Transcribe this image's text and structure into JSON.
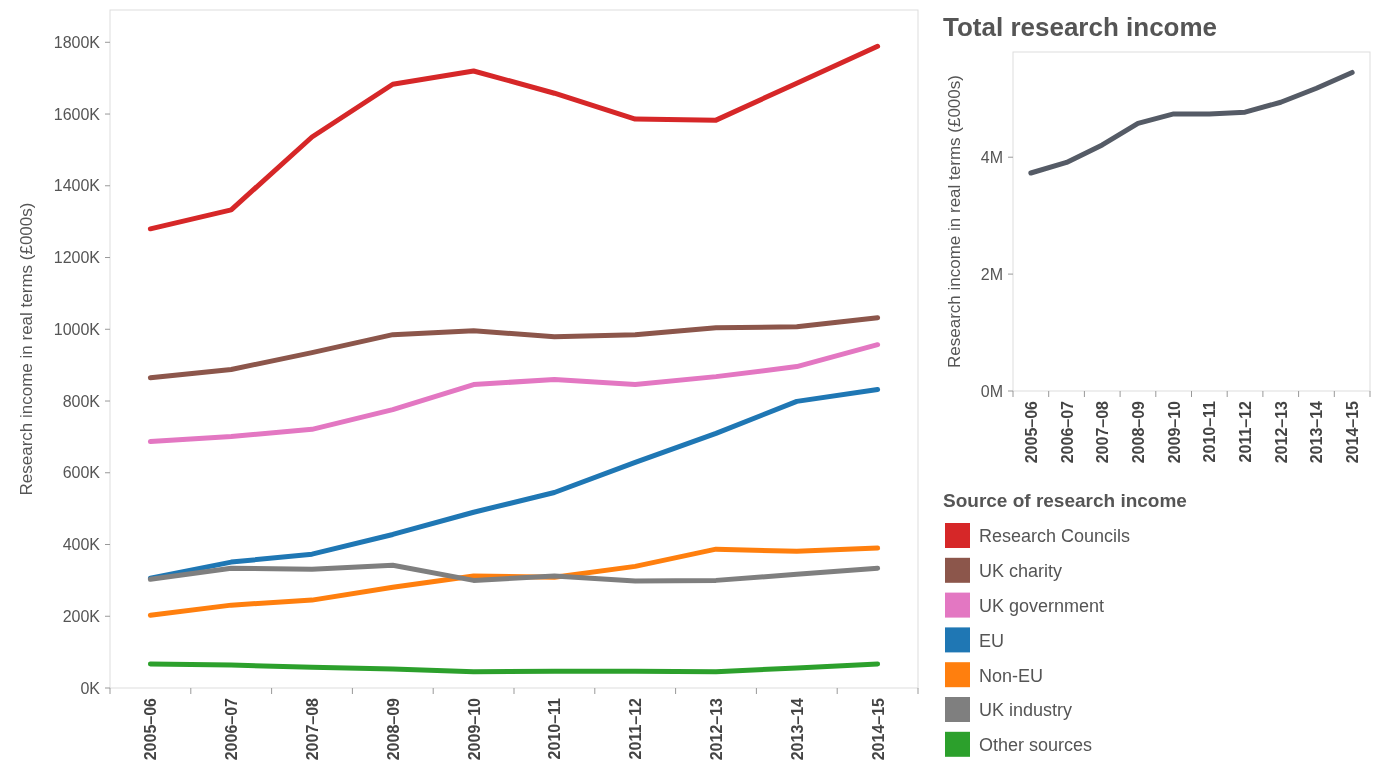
{
  "chart_data": [
    {
      "type": "line",
      "ylabel": "Research income in real terms (£000s)",
      "legend_title": "Source of research income",
      "legend": "right",
      "categories": [
        "2005–06",
        "2006–07",
        "2007–08",
        "2008–09",
        "2009–10",
        "2010–11",
        "2011–12",
        "2012–13",
        "2013–14",
        "2014–15"
      ],
      "ylim": [
        0,
        1890
      ],
      "yticks": [
        {
          "value": 0,
          "label": "0K"
        },
        {
          "value": 200,
          "label": "200K"
        },
        {
          "value": 400,
          "label": "400K"
        },
        {
          "value": 600,
          "label": "600K"
        },
        {
          "value": 800,
          "label": "800K"
        },
        {
          "value": 1000,
          "label": "1000K"
        },
        {
          "value": 1200,
          "label": "1200K"
        },
        {
          "value": 1400,
          "label": "1400K"
        },
        {
          "value": 1600,
          "label": "1600K"
        },
        {
          "value": 1800,
          "label": "1800K"
        }
      ],
      "grid": false,
      "series": [
        {
          "name": "Research Councils",
          "color": "#d62728",
          "values": [
            1280,
            1333,
            1536,
            1683,
            1720,
            1658,
            1586,
            1583,
            1686,
            1789
          ]
        },
        {
          "name": "UK charity",
          "color": "#8c564b",
          "values": [
            865,
            888,
            935,
            985,
            996,
            979,
            985,
            1004,
            1007,
            1032
          ]
        },
        {
          "name": "UK government",
          "color": "#e377c2",
          "values": [
            687,
            701,
            721,
            776,
            846,
            860,
            846,
            868,
            896,
            957
          ]
        },
        {
          "name": "EU",
          "color": "#1f77b4",
          "values": [
            306,
            351,
            373,
            428,
            490,
            545,
            629,
            710,
            799,
            832
          ]
        },
        {
          "name": "Non-EU",
          "color": "#ff7f0e",
          "values": [
            203,
            231,
            245,
            281,
            312,
            309,
            339,
            387,
            381,
            390
          ]
        },
        {
          "name": "UK industry",
          "color": "#7f7f7f",
          "values": [
            303,
            334,
            331,
            342,
            300,
            312,
            298,
            300,
            317,
            334
          ]
        },
        {
          "name": "Other sources",
          "color": "#2ca02c",
          "values": [
            67,
            64,
            58,
            53,
            45,
            47,
            47,
            45,
            56,
            67
          ]
        }
      ]
    },
    {
      "type": "line",
      "title": "Total research income",
      "ylabel": "Research income in real terms (£000s)",
      "categories": [
        "2005–06",
        "2006–07",
        "2007–08",
        "2008–09",
        "2009–10",
        "2010–11",
        "2011–12",
        "2012–13",
        "2013–14",
        "2014–15"
      ],
      "ylim": [
        0,
        5.8
      ],
      "yticks": [
        {
          "value": 0,
          "label": "0M"
        },
        {
          "value": 2,
          "label": "2M"
        },
        {
          "value": 4,
          "label": "4M"
        }
      ],
      "grid": false,
      "series": [
        {
          "color": "#555b66",
          "values": [
            3.73,
            3.91,
            4.21,
            4.58,
            4.74,
            4.74,
            4.77,
            4.94,
            5.18,
            5.45
          ]
        }
      ]
    }
  ]
}
